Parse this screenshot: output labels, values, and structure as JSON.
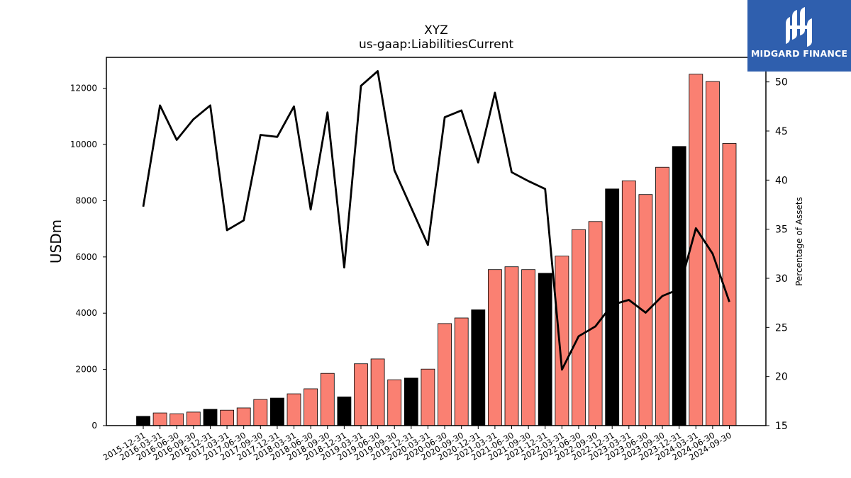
{
  "chart_data": {
    "type": "bar",
    "title": "XYZ",
    "subtitle": "us-gaap:LiabilitiesCurrent",
    "ylabel": "USDm",
    "y2label": "Percentage of Assets",
    "ylim": [
      0,
      13100
    ],
    "y2lim": [
      15,
      52.5
    ],
    "yticks": [
      0,
      2000,
      4000,
      6000,
      8000,
      10000,
      12000
    ],
    "y2ticks": [
      15,
      20,
      25,
      30,
      35,
      40,
      45,
      50
    ],
    "categories": [
      "2015-12-31",
      "2016-03-31",
      "2016-06-30",
      "2016-09-30",
      "2016-12-31",
      "2017-03-31",
      "2017-06-30",
      "2017-09-30",
      "2017-12-31",
      "2018-03-31",
      "2018-06-30",
      "2018-09-30",
      "2018-12-31",
      "2019-03-31",
      "2019-06-30",
      "2019-09-30",
      "2019-12-31",
      "2020-03-31",
      "2020-06-30",
      "2020-09-30",
      "2020-12-31",
      "2021-03-31",
      "2021-06-30",
      "2021-09-30",
      "2021-12-31",
      "2022-03-31",
      "2022-06-30",
      "2022-09-30",
      "2022-12-31",
      "2023-03-31",
      "2023-06-30",
      "2023-09-30",
      "2023-12-31",
      "2024-03-31",
      "2024-06-30",
      "2024-09-30"
    ],
    "series": [
      {
        "type": "bar",
        "values": [
          330,
          450,
          420,
          480,
          580,
          550,
          630,
          930,
          980,
          1130,
          1310,
          1860,
          1020,
          2200,
          2370,
          1630,
          1690,
          2010,
          3630,
          3830,
          4120,
          5550,
          5650,
          5550,
          5420,
          6030,
          6970,
          7260,
          8420,
          8710,
          8220,
          9190,
          9930,
          12500,
          12240,
          10040
        ]
      },
      {
        "type": "line",
        "axis": "right",
        "values": [
          37.3,
          47.6,
          44.1,
          46.2,
          47.6,
          34.9,
          35.9,
          44.6,
          44.4,
          47.5,
          37.0,
          46.9,
          31.1,
          49.6,
          51.1,
          41.0,
          37.2,
          33.4,
          46.4,
          47.1,
          41.8,
          48.9,
          40.8,
          39.9,
          39.1,
          20.7,
          24.1,
          25.1,
          27.3,
          27.8,
          26.5,
          28.2,
          28.9,
          35.1,
          32.5,
          27.6
        ]
      }
    ],
    "colors": {
      "bar_default": "#fa8072",
      "bar_year_end": "#000000",
      "line": "#000000"
    },
    "year_end_bars": [
      0,
      4,
      8,
      12,
      16,
      20,
      24,
      28,
      32
    ]
  },
  "logo": {
    "text": "MIDGARD FINANCE",
    "icon": "midgard-logo-icon",
    "background": "#2f5fae"
  }
}
